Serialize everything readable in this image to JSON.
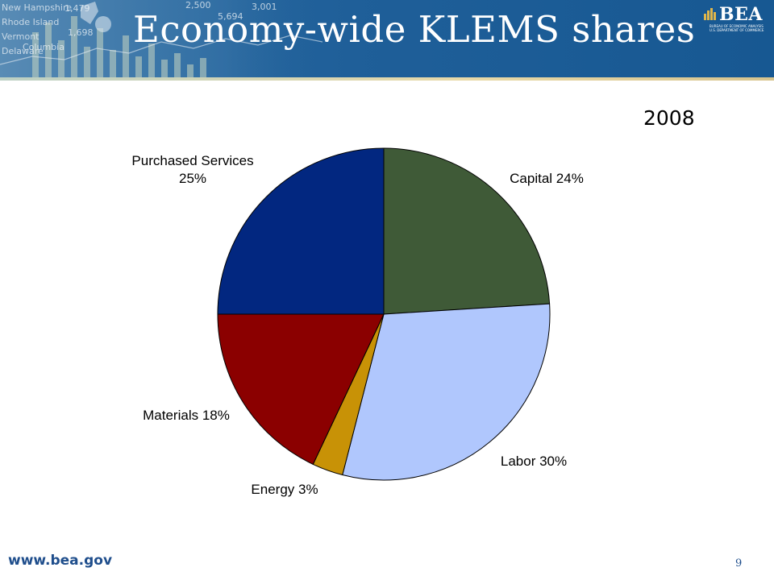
{
  "slide": {
    "title": "Economy-wide KLEMS shares",
    "year": "2008",
    "footer_url": "www.bea.gov",
    "page_number": "9",
    "logo": {
      "text": "BEA",
      "subtitle_line1": "BUREAU OF ECONOMIC ANALYSIS",
      "subtitle_line2": "U.S. DEPARTMENT OF COMMERCE"
    },
    "header_collage_text": [
      "New Hampshire",
      "Rhode Island",
      "Vermont",
      "Delaware",
      "Columbia",
      "1,479",
      "1,698",
      "2,500",
      "5,694",
      "3,001"
    ]
  },
  "chart_data": {
    "type": "pie",
    "title": "2008",
    "start_angle_deg": 0,
    "direction": "clockwise",
    "slices": [
      {
        "label": "Capital 24%",
        "value": 24,
        "color": "#3f5a37"
      },
      {
        "label": "Labor 30%",
        "value": 30,
        "color": "#b0c7fd"
      },
      {
        "label": "Energy 3%",
        "value": 3,
        "color": "#c89206"
      },
      {
        "label": "Materials 18%",
        "value": 18,
        "color": "#8b0000"
      },
      {
        "label": "Purchased Services 25%",
        "value": 25,
        "color": "#022780",
        "label_lines": [
          "Purchased Services",
          "25%"
        ]
      }
    ]
  }
}
